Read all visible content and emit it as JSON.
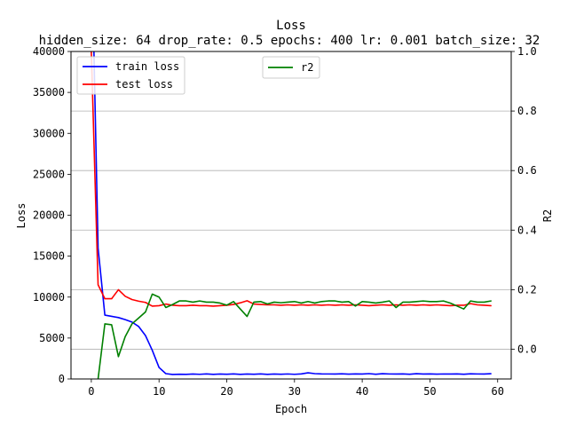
{
  "chart_data": {
    "type": "line",
    "title": "Loss",
    "subtitle": "hidden_size: 64 drop_rate: 0.5 epochs: 400 lr: 0.001 batch_size: 32",
    "xlabel": "Epoch",
    "ylabel": "Loss",
    "y2label": "R2",
    "xlim": [
      -3,
      62
    ],
    "ylim": [
      0,
      40000
    ],
    "y2lim": [
      -0.1,
      1.0
    ],
    "xticks": [
      0,
      10,
      20,
      30,
      40,
      50,
      60
    ],
    "yticks": [
      0,
      5000,
      10000,
      15000,
      20000,
      25000,
      30000,
      35000,
      40000
    ],
    "y2ticks": [
      0.0,
      0.2,
      0.4,
      0.6,
      0.8,
      1.0
    ],
    "grid": "right-axis horizontal only",
    "legend_left_placement": "top-left",
    "legend_right_placement": "top-center",
    "x": [
      0,
      1,
      2,
      3,
      4,
      5,
      6,
      7,
      8,
      9,
      10,
      11,
      12,
      13,
      14,
      15,
      16,
      17,
      18,
      19,
      20,
      21,
      22,
      23,
      24,
      25,
      26,
      27,
      28,
      29,
      30,
      31,
      32,
      33,
      34,
      35,
      36,
      37,
      38,
      39,
      40,
      41,
      42,
      43,
      44,
      45,
      46,
      47,
      48,
      49,
      50,
      51,
      52,
      53,
      54,
      55,
      56,
      57,
      58,
      59
    ],
    "series": [
      {
        "name": "train loss",
        "axis": "left",
        "color": "#0000ff",
        "values": [
          55000,
          16000,
          7800,
          7650,
          7500,
          7250,
          6950,
          6400,
          5300,
          3500,
          1400,
          650,
          550,
          580,
          560,
          600,
          570,
          620,
          560,
          600,
          580,
          620,
          560,
          600,
          580,
          620,
          560,
          600,
          580,
          610,
          570,
          620,
          750,
          650,
          620,
          610,
          600,
          630,
          590,
          620,
          600,
          650,
          580,
          640,
          610,
          600,
          620,
          580,
          640,
          600,
          620,
          590,
          610,
          600,
          620,
          580,
          630,
          610,
          600,
          640
        ]
      },
      {
        "name": "test loss",
        "axis": "left",
        "color": "#ff0000",
        "values": [
          40000,
          11500,
          9800,
          9800,
          10900,
          10100,
          9700,
          9500,
          9350,
          8900,
          8950,
          9150,
          9000,
          8950,
          8950,
          9000,
          8950,
          8950,
          8900,
          8950,
          9000,
          9100,
          9300,
          9550,
          9150,
          9100,
          9050,
          9050,
          9000,
          9050,
          9000,
          9050,
          9000,
          9050,
          9000,
          9050,
          9000,
          9050,
          9000,
          9050,
          9000,
          8950,
          9000,
          9050,
          9000,
          9050,
          9000,
          9050,
          9000,
          9050,
          9000,
          9050,
          9000,
          8950,
          9000,
          9000,
          9200,
          9050,
          9000,
          8950
        ]
      },
      {
        "name": "r2",
        "axis": "right",
        "color": "#008000",
        "values": [
          -0.27,
          -0.1,
          0.085,
          0.082,
          -0.025,
          0.042,
          0.085,
          0.105,
          0.125,
          0.185,
          0.175,
          0.14,
          0.15,
          0.162,
          0.162,
          0.158,
          0.162,
          0.158,
          0.158,
          0.155,
          0.148,
          0.16,
          0.135,
          0.11,
          0.158,
          0.16,
          0.152,
          0.158,
          0.156,
          0.158,
          0.16,
          0.155,
          0.16,
          0.155,
          0.16,
          0.162,
          0.162,
          0.158,
          0.16,
          0.145,
          0.16,
          0.158,
          0.155,
          0.158,
          0.162,
          0.14,
          0.158,
          0.158,
          0.16,
          0.162,
          0.16,
          0.16,
          0.162,
          0.155,
          0.145,
          0.135,
          0.162,
          0.158,
          0.158,
          0.162
        ]
      }
    ]
  }
}
